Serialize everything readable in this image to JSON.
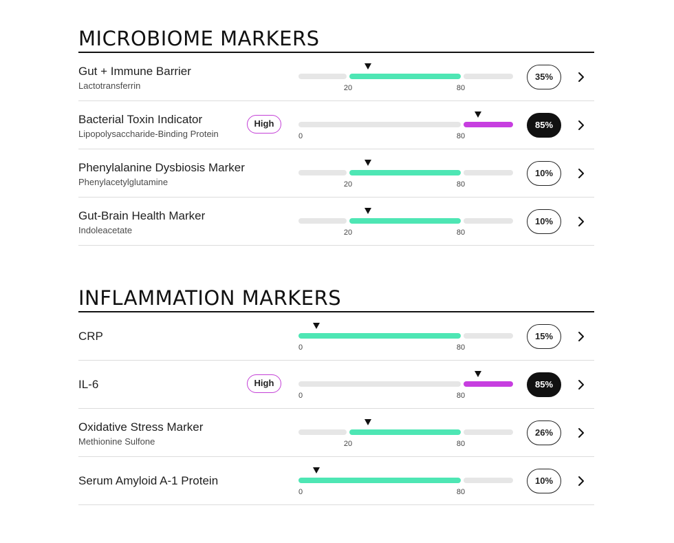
{
  "colors": {
    "normal": "#4ee6b4",
    "high": "#c73ee0",
    "track": "#e6e6e6",
    "flag_border": "#c33fd6"
  },
  "sections": [
    {
      "title": "MICROBIOME MARKERS",
      "rows": [
        {
          "name": "Gut + Immune Barrier",
          "subtitle": "Lactotransferrin",
          "flag": "",
          "value_pct": 35,
          "value_label": "35%",
          "range_type": "mid",
          "ticks": [
            "20",
            "80"
          ],
          "highlight": "normal",
          "status": "normal"
        },
        {
          "name": "Bacterial Toxin Indicator",
          "subtitle": "Lipopolysaccharide-Binding Protein",
          "flag": "High",
          "value_pct": 85,
          "value_label": "85%",
          "range_type": "low",
          "ticks": [
            "0",
            "80"
          ],
          "highlight": "high",
          "status": "high"
        },
        {
          "name": "Phenylalanine Dysbiosis Marker",
          "subtitle": "Phenylacetylglutamine",
          "flag": "",
          "value_pct": 10,
          "value_label": "10%",
          "range_type": "mid",
          "ticks": [
            "20",
            "80"
          ],
          "highlight": "normal",
          "status": "normal"
        },
        {
          "name": "Gut-Brain Health Marker",
          "subtitle": "Indoleacetate",
          "flag": "",
          "value_pct": 10,
          "value_label": "10%",
          "range_type": "mid",
          "ticks": [
            "20",
            "80"
          ],
          "highlight": "normal",
          "status": "normal"
        }
      ]
    },
    {
      "title": "INFLAMMATION MARKERS",
      "rows": [
        {
          "name": "CRP",
          "subtitle": "",
          "flag": "",
          "value_pct": 15,
          "value_label": "15%",
          "range_type": "low",
          "ticks": [
            "0",
            "80"
          ],
          "highlight": "normal",
          "status": "normal"
        },
        {
          "name": "IL-6",
          "subtitle": "",
          "flag": "High",
          "value_pct": 85,
          "value_label": "85%",
          "range_type": "low",
          "ticks": [
            "0",
            "80"
          ],
          "highlight": "high",
          "status": "high"
        },
        {
          "name": "Oxidative Stress Marker",
          "subtitle": "Methionine Sulfone",
          "flag": "",
          "value_pct": 26,
          "value_label": "26%",
          "range_type": "mid",
          "ticks": [
            "20",
            "80"
          ],
          "highlight": "normal",
          "status": "normal"
        },
        {
          "name": "Serum Amyloid A-1 Protein",
          "subtitle": "",
          "flag": "",
          "value_pct": 10,
          "value_label": "10%",
          "range_type": "low",
          "ticks": [
            "0",
            "80"
          ],
          "highlight": "normal",
          "status": "normal"
        }
      ]
    }
  ]
}
